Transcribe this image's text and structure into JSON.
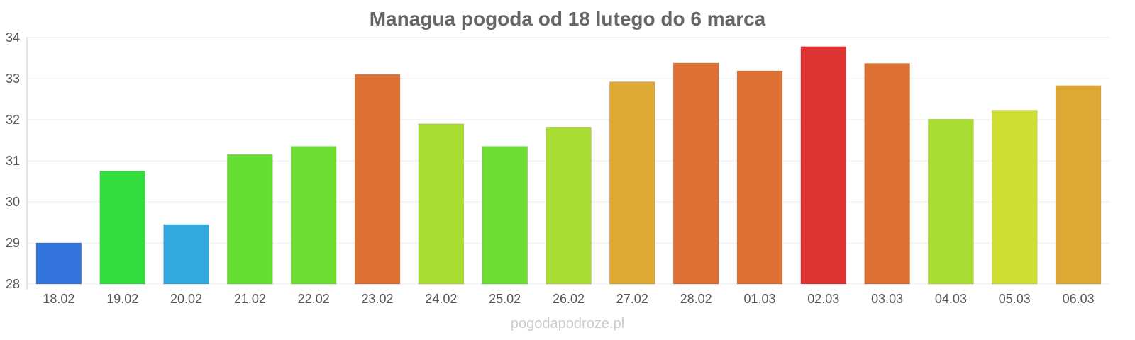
{
  "chart_data": {
    "type": "bar",
    "title": "Managua pogoda od 18 lutego do 6 marca",
    "xlabel": "",
    "ylabel": "",
    "ylim": [
      28,
      34
    ],
    "yticks": [
      28,
      29,
      30,
      31,
      32,
      33,
      34
    ],
    "grid": true,
    "legend": "none",
    "categories": [
      "18.02",
      "19.02",
      "20.02",
      "21.02",
      "22.02",
      "23.02",
      "24.02",
      "25.02",
      "26.02",
      "27.02",
      "28.02",
      "01.03",
      "02.03",
      "03.03",
      "04.03",
      "05.03",
      "06.03"
    ],
    "values": [
      29.0,
      30.75,
      29.45,
      31.15,
      31.35,
      33.1,
      31.9,
      31.35,
      31.82,
      32.92,
      33.38,
      33.19,
      33.78,
      33.37,
      32.01,
      32.23,
      32.83
    ],
    "colors": [
      "#3375dd",
      "#33dd3c",
      "#33a8dd",
      "#66dd33",
      "#6ddd33",
      "#dd7033",
      "#aadd33",
      "#6ddd33",
      "#aadd33",
      "#dda833",
      "#dd7033",
      "#dd7033",
      "#dd3333",
      "#dd7033",
      "#aadd33",
      "#cddd33",
      "#dda833"
    ]
  },
  "footer": {
    "watermark": "pogodapodroze.pl"
  }
}
